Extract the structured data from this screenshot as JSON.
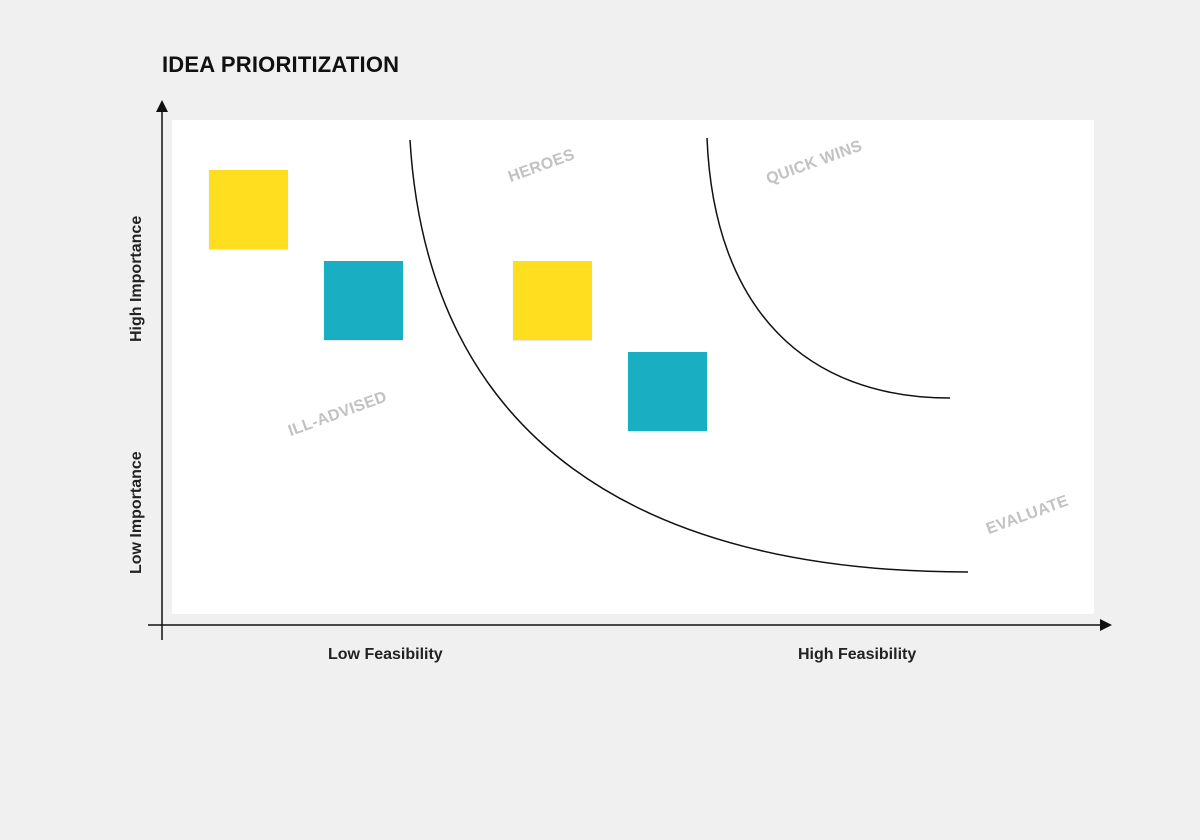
{
  "title": "IDEA PRIORITIZATION",
  "axes": {
    "y_high": "High Importance",
    "y_low": "Low Importance",
    "x_low": "Low Feasibility",
    "x_high": "High Feasibility"
  },
  "zones": {
    "heroes": "HEROES",
    "quick_wins": "QUICK WINS",
    "ill_advised": "ILL-ADVISED",
    "evaluate": "EVALUATE"
  },
  "colors": {
    "background": "#f0f0f0",
    "board": "#ffffff",
    "sticky_yellow": "#ffdd1f",
    "sticky_teal": "#1aaec2",
    "zone_text": "#c2c2c2",
    "line": "#111111"
  },
  "sticky_notes": [
    {
      "color": "yellow"
    },
    {
      "color": "teal"
    },
    {
      "color": "yellow"
    },
    {
      "color": "teal"
    }
  ]
}
